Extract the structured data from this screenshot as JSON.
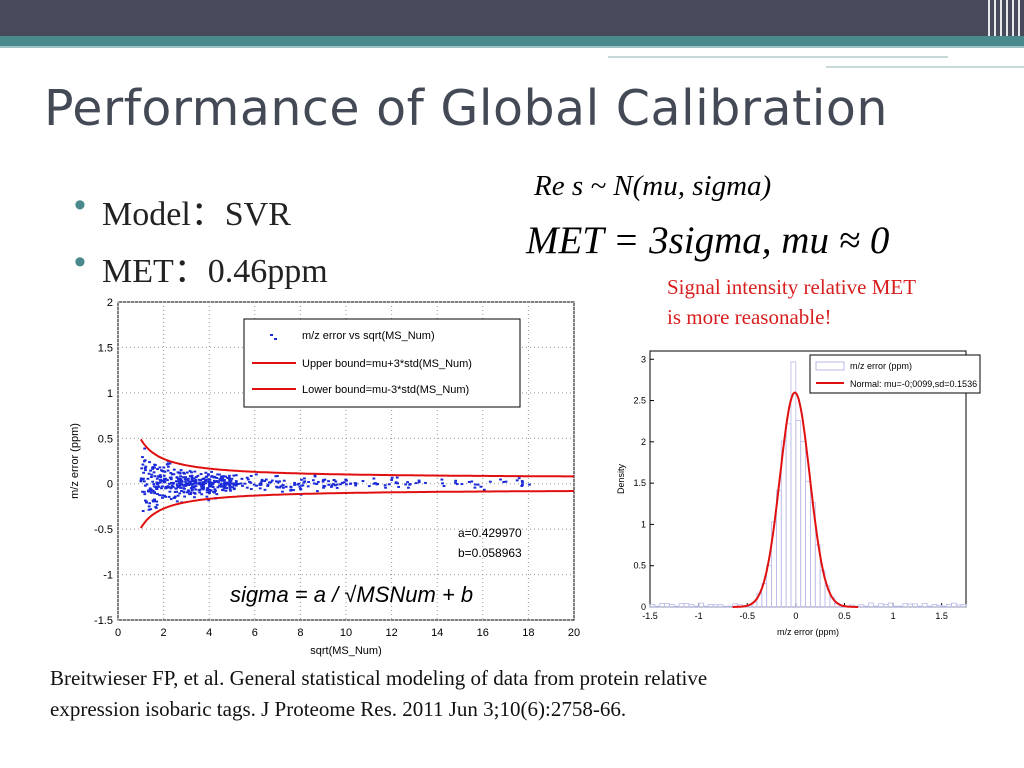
{
  "title": "Performance of Global Calibration",
  "bullets": [
    {
      "label": "Model：SVR"
    },
    {
      "label": "MET：0.46ppm"
    }
  ],
  "formulas": {
    "res": "Re s ~ N(mu, sigma)",
    "met": "MET = 3sigma, mu ≈ 0",
    "sigma": "sigma = a / √MSNum + b"
  },
  "note": {
    "line1": "Signal intensity relative MET",
    "line2": "is more reasonable!"
  },
  "citation": {
    "line1": "Breitwieser FP, et al. General statistical modeling of data from protein relative",
    "line2": "expression isobaric tags. J Proteome Res. 2011 Jun 3;10(6):2758-66."
  },
  "colors": {
    "title": "#444956",
    "accent_teal": "#4a8a8c",
    "note_red": "#d81e1e",
    "bound_red": "#e01010",
    "point_blue": "#1a2ad8"
  },
  "chart_data": [
    {
      "type": "scatter",
      "title": "",
      "xlabel": "sqrt(MS_Num)",
      "ylabel": "m/z error (ppm)",
      "xlim": [
        0,
        20
      ],
      "ylim": [
        -1.5,
        2
      ],
      "xticks": [
        0,
        2,
        4,
        6,
        8,
        10,
        12,
        14,
        16,
        18,
        20
      ],
      "yticks": [
        -1.5,
        -1,
        -0.5,
        0,
        0.5,
        1,
        1.5,
        2
      ],
      "grid": true,
      "legend_position": "top-right",
      "annotation": {
        "a_label": "a=0.429970",
        "b_label": "b=0.058963"
      },
      "params": {
        "a": 0.42997,
        "b": 0.058963
      },
      "series": [
        {
          "name": "m/z  error vs sqrt(MS_Num)",
          "kind": "points",
          "color": "#1a2ad8"
        },
        {
          "name": "Upper bound=mu+3*std(MS_Num)",
          "kind": "curve",
          "color": "#e01010"
        },
        {
          "name": "Lower bound=mu-3*std(MS_Num)",
          "kind": "curve",
          "color": "#e01010"
        }
      ]
    },
    {
      "type": "bar",
      "title": "",
      "xlabel": "m/z error (ppm)",
      "ylabel": "Density",
      "xlim": [
        -1.5,
        1.75
      ],
      "ylim": [
        0,
        3.1
      ],
      "xticks": [
        -1.5,
        -1,
        -0.5,
        0,
        0.5,
        1,
        1.5
      ],
      "yticks": [
        0,
        0.5,
        1,
        1.5,
        2,
        2.5,
        3
      ],
      "grid": false,
      "legend_position": "top-right",
      "series": [
        {
          "name": "m/z error (ppm)",
          "kind": "histogram",
          "color": "#b8b8e8"
        },
        {
          "name": "Normal: mu=-0;0099,sd=0.1536",
          "kind": "curve",
          "color": "#e01010",
          "mu": -0.0099,
          "sd": 0.1536
        }
      ]
    }
  ]
}
